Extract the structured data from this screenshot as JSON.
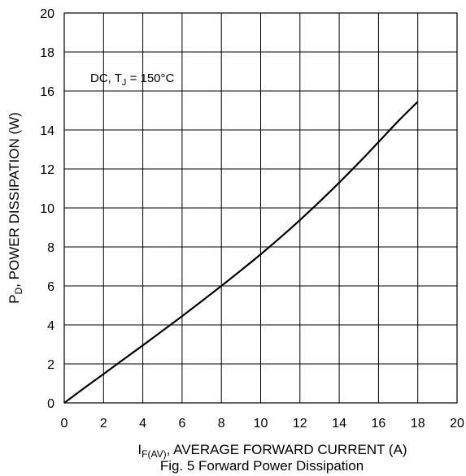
{
  "chart_data": {
    "type": "line",
    "title": "",
    "caption": "Fig. 5 Forward Power Dissipation",
    "xlabel": {
      "prefix": "I",
      "subscript": "F(AV)",
      "rest": ", AVERAGE FORWARD CURRENT (A)"
    },
    "ylabel": {
      "prefix": "P",
      "subscript": "D",
      "rest": ", POWER DISSIPATION (W)"
    },
    "annotation": {
      "prefix": "DC, T",
      "subscript": "J",
      "rest": " = 150°C"
    },
    "xlim": [
      0,
      20
    ],
    "ylim": [
      0,
      20
    ],
    "xticks": [
      0,
      2,
      4,
      6,
      8,
      10,
      12,
      14,
      16,
      18,
      20
    ],
    "yticks": [
      0,
      2,
      4,
      6,
      8,
      10,
      12,
      14,
      16,
      18,
      20
    ],
    "xtick_labels": [
      "0",
      "2",
      "4",
      "6",
      "8",
      "10",
      "12",
      "14",
      "16",
      "18",
      "20"
    ],
    "ytick_labels": [
      "0",
      "2",
      "4",
      "6",
      "8",
      "10",
      "12",
      "14",
      "16",
      "18",
      "20"
    ],
    "grid": true,
    "series": [
      {
        "x": [
          0,
          1,
          2,
          3,
          4,
          5,
          6,
          7,
          8,
          9,
          10,
          11,
          12,
          13,
          14,
          15,
          16,
          17,
          18
        ],
        "y": [
          0,
          0.75,
          1.48,
          2.22,
          2.95,
          3.7,
          4.45,
          5.22,
          6.0,
          6.8,
          7.62,
          8.48,
          9.38,
          10.32,
          11.3,
          12.32,
          13.38,
          14.45,
          15.45
        ],
        "color": "#000000"
      }
    ]
  }
}
